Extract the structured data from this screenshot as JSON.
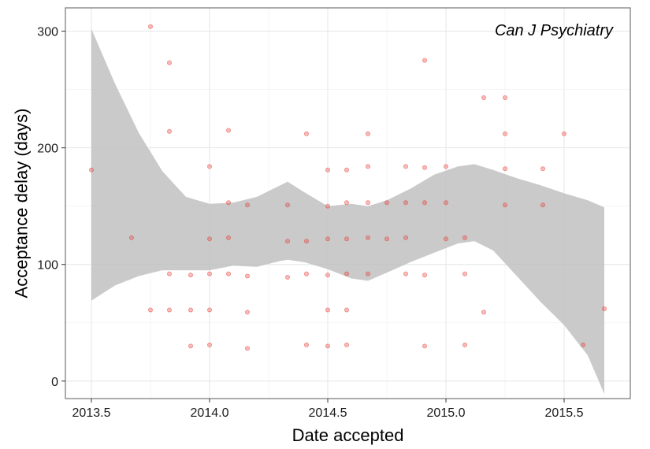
{
  "chart_data": {
    "type": "scatter",
    "title": "Can J Psychiatry",
    "xlabel": "Date accepted",
    "ylabel": "Acceptance delay (days)",
    "xlim": [
      2013.39,
      2015.78
    ],
    "ylim": [
      -15,
      320
    ],
    "x_ticks": [
      2013.5,
      2014.0,
      2014.5,
      2015.0,
      2015.5
    ],
    "x_tick_labels": [
      "2013.5",
      "2014.0",
      "2014.5",
      "2015.0",
      "2015.5"
    ],
    "y_ticks": [
      0,
      100,
      200,
      300
    ],
    "y_tick_labels": [
      "0",
      "100",
      "200",
      "300"
    ],
    "grid": true,
    "point_color": "#e8403a",
    "band_color": "#bdbdbd",
    "points": [
      [
        2013.5,
        181
      ],
      [
        2013.67,
        123
      ],
      [
        2013.75,
        304
      ],
      [
        2013.75,
        61
      ],
      [
        2013.83,
        273
      ],
      [
        2013.83,
        214
      ],
      [
        2013.83,
        92
      ],
      [
        2013.83,
        61
      ],
      [
        2013.92,
        91
      ],
      [
        2013.92,
        61
      ],
      [
        2013.92,
        30
      ],
      [
        2014.0,
        184
      ],
      [
        2014.0,
        122
      ],
      [
        2014.0,
        92
      ],
      [
        2014.0,
        61
      ],
      [
        2014.0,
        31
      ],
      [
        2014.08,
        215
      ],
      [
        2014.08,
        153
      ],
      [
        2014.08,
        123
      ],
      [
        2014.08,
        92
      ],
      [
        2014.16,
        151
      ],
      [
        2014.16,
        90
      ],
      [
        2014.16,
        59
      ],
      [
        2014.16,
        28
      ],
      [
        2014.33,
        151
      ],
      [
        2014.33,
        120
      ],
      [
        2014.33,
        89
      ],
      [
        2014.41,
        212
      ],
      [
        2014.41,
        120
      ],
      [
        2014.41,
        92
      ],
      [
        2014.41,
        31
      ],
      [
        2014.5,
        181
      ],
      [
        2014.5,
        150
      ],
      [
        2014.5,
        122
      ],
      [
        2014.5,
        91
      ],
      [
        2014.5,
        61
      ],
      [
        2014.5,
        30
      ],
      [
        2014.58,
        181
      ],
      [
        2014.58,
        153
      ],
      [
        2014.58,
        122
      ],
      [
        2014.58,
        92
      ],
      [
        2014.58,
        61
      ],
      [
        2014.58,
        31
      ],
      [
        2014.67,
        212
      ],
      [
        2014.67,
        184
      ],
      [
        2014.67,
        153
      ],
      [
        2014.67,
        123
      ],
      [
        2014.67,
        92
      ],
      [
        2014.75,
        153
      ],
      [
        2014.75,
        122
      ],
      [
        2014.83,
        184
      ],
      [
        2014.83,
        153
      ],
      [
        2014.83,
        123
      ],
      [
        2014.83,
        92
      ],
      [
        2014.91,
        275
      ],
      [
        2014.91,
        183
      ],
      [
        2014.91,
        153
      ],
      [
        2014.91,
        91
      ],
      [
        2014.91,
        30
      ],
      [
        2015.0,
        184
      ],
      [
        2015.0,
        153
      ],
      [
        2015.0,
        122
      ],
      [
        2015.08,
        123
      ],
      [
        2015.08,
        92
      ],
      [
        2015.08,
        31
      ],
      [
        2015.16,
        243
      ],
      [
        2015.16,
        59
      ],
      [
        2015.25,
        243
      ],
      [
        2015.25,
        212
      ],
      [
        2015.25,
        182
      ],
      [
        2015.25,
        151
      ],
      [
        2015.41,
        182
      ],
      [
        2015.41,
        151
      ],
      [
        2015.5,
        212
      ],
      [
        2015.58,
        31
      ],
      [
        2015.67,
        62
      ]
    ],
    "band": {
      "x": [
        2013.5,
        2013.6,
        2013.7,
        2013.8,
        2013.9,
        2014.0,
        2014.1,
        2014.2,
        2014.3,
        2014.33,
        2014.4,
        2014.5,
        2014.6,
        2014.67,
        2014.75,
        2014.85,
        2014.95,
        2015.05,
        2015.12,
        2015.2,
        2015.3,
        2015.4,
        2015.5,
        2015.6,
        2015.67
      ],
      "upper": [
        302,
        255,
        213,
        180,
        158,
        152,
        153,
        158,
        168,
        171,
        162,
        150,
        152,
        150,
        155,
        165,
        177,
        184,
        186,
        181,
        174,
        168,
        161,
        155,
        149
      ],
      "lower": [
        69,
        82,
        90,
        95,
        95,
        95,
        99,
        98,
        103,
        104,
        102,
        96,
        88,
        86,
        93,
        102,
        110,
        118,
        120,
        112,
        90,
        68,
        48,
        22,
        -11
      ]
    }
  }
}
